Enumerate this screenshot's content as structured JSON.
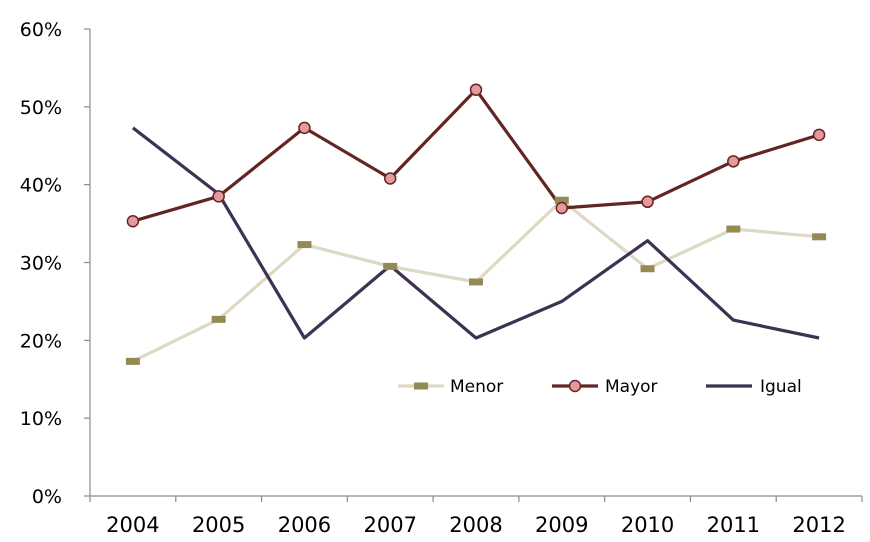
{
  "chart_data": {
    "type": "line",
    "title": "",
    "xlabel": "",
    "ylabel": "",
    "categories": [
      "2004",
      "2005",
      "2006",
      "2007",
      "2008",
      "2009",
      "2010",
      "2011",
      "2012"
    ],
    "ylim": [
      0,
      60
    ],
    "y_ticks": [
      0,
      10,
      20,
      30,
      40,
      50,
      60
    ],
    "y_tick_labels": [
      "0%",
      "10%",
      "20%",
      "30%",
      "40%",
      "50%",
      "60%"
    ],
    "grid": false,
    "legend_position": "inside-lower-right",
    "series": [
      {
        "name": "Menor",
        "color": "#ddd9c3",
        "marker": "dash",
        "marker_color": "#948a54",
        "values": [
          17.3,
          22.7,
          32.3,
          29.5,
          27.5,
          38.0,
          29.2,
          34.3,
          33.3
        ]
      },
      {
        "name": "Mayor",
        "color": "#632523",
        "marker": "circle",
        "marker_color": "#e6999c",
        "values": [
          35.3,
          38.5,
          47.3,
          40.8,
          52.2,
          37.0,
          37.8,
          43.0,
          46.4
        ]
      },
      {
        "name": "Igual",
        "color": "#3f3151",
        "marker": "none",
        "marker_color": "",
        "values": [
          47.3,
          38.8,
          20.3,
          29.6,
          20.3,
          25.0,
          32.8,
          22.6,
          20.3
        ]
      }
    ]
  }
}
